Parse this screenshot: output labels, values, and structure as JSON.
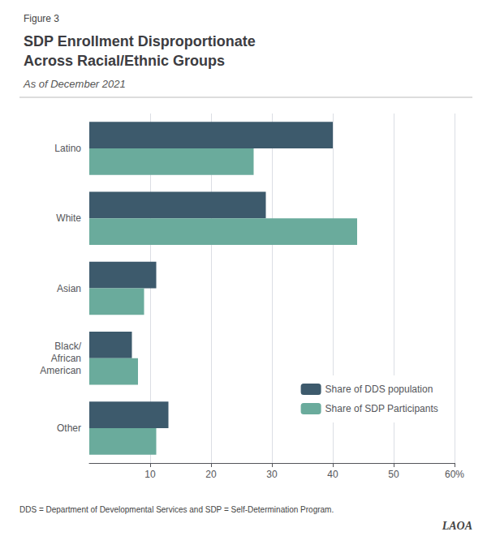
{
  "chart_data": {
    "type": "bar",
    "orientation": "horizontal",
    "figure_label": "Figure 3",
    "title": "SDP Enrollment Disproportionate\nAcross Racial/Ethnic Groups",
    "subtitle": "As of December 2021",
    "footnote": "DDS = Department of Developmental Services and SDP = Self-Determination Program.",
    "annotation": "LAOA",
    "categories": [
      "Latino",
      "White",
      "Asian",
      "Black/\nAfrican\nAmerican",
      "Other"
    ],
    "series": [
      {
        "name": "Share of DDS population",
        "color": "#3d5a6c",
        "values": [
          40,
          29,
          11,
          7,
          13
        ]
      },
      {
        "name": "Share of SDP Participants",
        "color": "#6aab9c",
        "values": [
          27,
          44,
          9,
          8,
          11
        ]
      }
    ],
    "xlim": [
      0,
      60
    ],
    "xticks": [
      10,
      20,
      30,
      40,
      50,
      {
        "value": 60,
        "label": "60%"
      }
    ],
    "grid": true,
    "legend": "lower right"
  }
}
